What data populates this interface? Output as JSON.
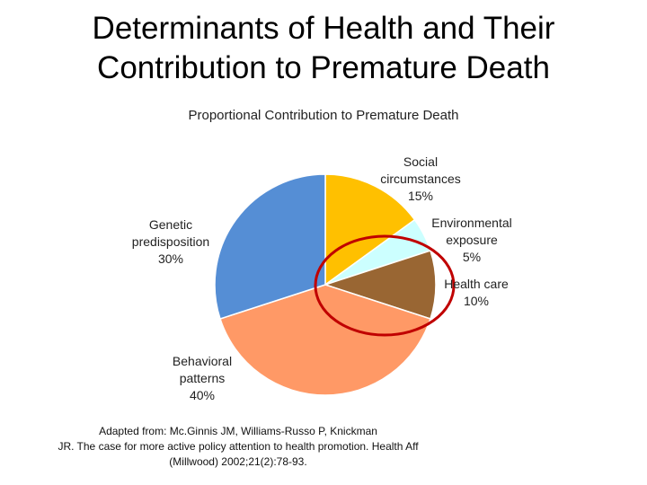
{
  "slide": {
    "title_lines": [
      "Determinants of Health and Their",
      "Contribution to Premature Death"
    ],
    "citation_lines": [
      "Adapted from:  Mc.Ginnis JM, Williams-Russo P, Knickman",
      "JR. The case for more active policy attention to health promotion. Health Aff",
      "(Millwood) 2002;21(2):78-93."
    ]
  },
  "chart_data": {
    "type": "pie",
    "title": "Proportional Contribution to Premature Death",
    "slices": [
      {
        "label_lines": [
          "Social",
          "circumstances"
        ],
        "value": 15,
        "value_label": "15%",
        "color": "#FFC000"
      },
      {
        "label_lines": [
          "Environmental",
          "exposure"
        ],
        "value": 5,
        "value_label": "5%",
        "color": "#CCFFFF"
      },
      {
        "label_lines": [
          "Health care"
        ],
        "value": 10,
        "value_label": "10%",
        "color": "#996633"
      },
      {
        "label_lines": [
          "Behavioral",
          "patterns"
        ],
        "value": 40,
        "value_label": "40%",
        "color": "#FF9966"
      },
      {
        "label_lines": [
          "Genetic",
          "predisposition"
        ],
        "value": 30,
        "value_label": "30%",
        "color": "#558ED5"
      }
    ],
    "highlight_color": "#C00000"
  }
}
